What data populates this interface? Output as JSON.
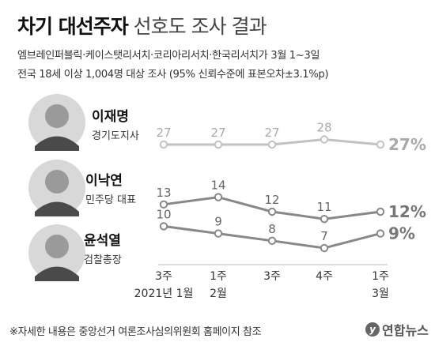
{
  "title_bold": "차기 대선주자",
  "title_light": "선호도 조사 결과",
  "subtitle_1": "엠브레인퍼블릭·케이스탯리서치·코리아리서치·한국리서치가 3월 1~3일",
  "subtitle_2": "전국 18세 이상 1,004명 대상 조사 (95% 신뢰수준에 표본오차±3.1%p)",
  "footnote": "※자세한 내용은 중앙선거 여론조사심의위원회 홈페이지 참조",
  "logo": "연합뉴스",
  "logo_mark": "y",
  "candidates": [
    {
      "name": "이재명",
      "role": "경기도지사",
      "icon": "person-photo-icon"
    },
    {
      "name": "이낙연",
      "role": "민주당 대표",
      "icon": "person-photo-icon"
    },
    {
      "name": "윤석열",
      "role": "검찰총장",
      "icon": "person-photo-icon"
    }
  ],
  "chart_data": {
    "type": "line",
    "categories": [
      [
        "3주",
        "2021년 1월"
      ],
      [
        "1주",
        "2월"
      ],
      [
        "3주",
        ""
      ],
      [
        "4주",
        ""
      ],
      [
        "1주",
        "3월"
      ]
    ],
    "series": [
      {
        "name": "이재명",
        "values": [
          27,
          27,
          27,
          28,
          27
        ],
        "last_label": "27%",
        "color": "#c2c2c2"
      },
      {
        "name": "이낙연",
        "values": [
          13,
          14,
          12,
          11,
          12
        ],
        "last_label": "12%",
        "color": "#888888"
      },
      {
        "name": "윤석열",
        "values": [
          10,
          9,
          8,
          7,
          9
        ],
        "last_label": "9%",
        "color": "#888888"
      }
    ]
  }
}
